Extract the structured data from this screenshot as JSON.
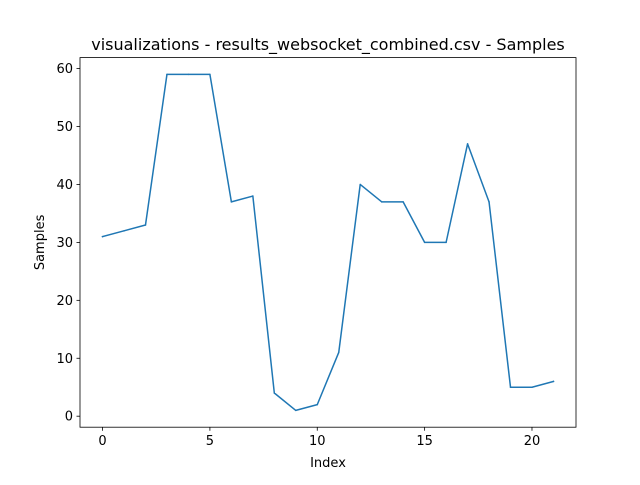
{
  "chart_data": {
    "type": "line",
    "title": "visualizations - results_websocket_combined.csv - Samples",
    "xlabel": "Index",
    "ylabel": "Samples",
    "xlim": [
      -1.05,
      22.05
    ],
    "ylim": [
      -1.9,
      61.9
    ],
    "xticks": [
      0,
      5,
      10,
      15,
      20
    ],
    "yticks": [
      0,
      10,
      20,
      30,
      40,
      50,
      60
    ],
    "grid": false,
    "x": [
      0,
      1,
      2,
      3,
      4,
      5,
      6,
      7,
      8,
      9,
      10,
      11,
      12,
      13,
      14,
      15,
      16,
      17,
      18,
      19,
      20,
      21
    ],
    "series": [
      {
        "values": [
          31,
          32,
          33,
          59,
          59,
          59,
          37,
          38,
          4,
          1,
          2,
          11,
          40,
          37,
          37,
          30,
          30,
          47,
          37,
          5,
          5,
          6
        ],
        "color": "#1f77b4"
      }
    ]
  }
}
